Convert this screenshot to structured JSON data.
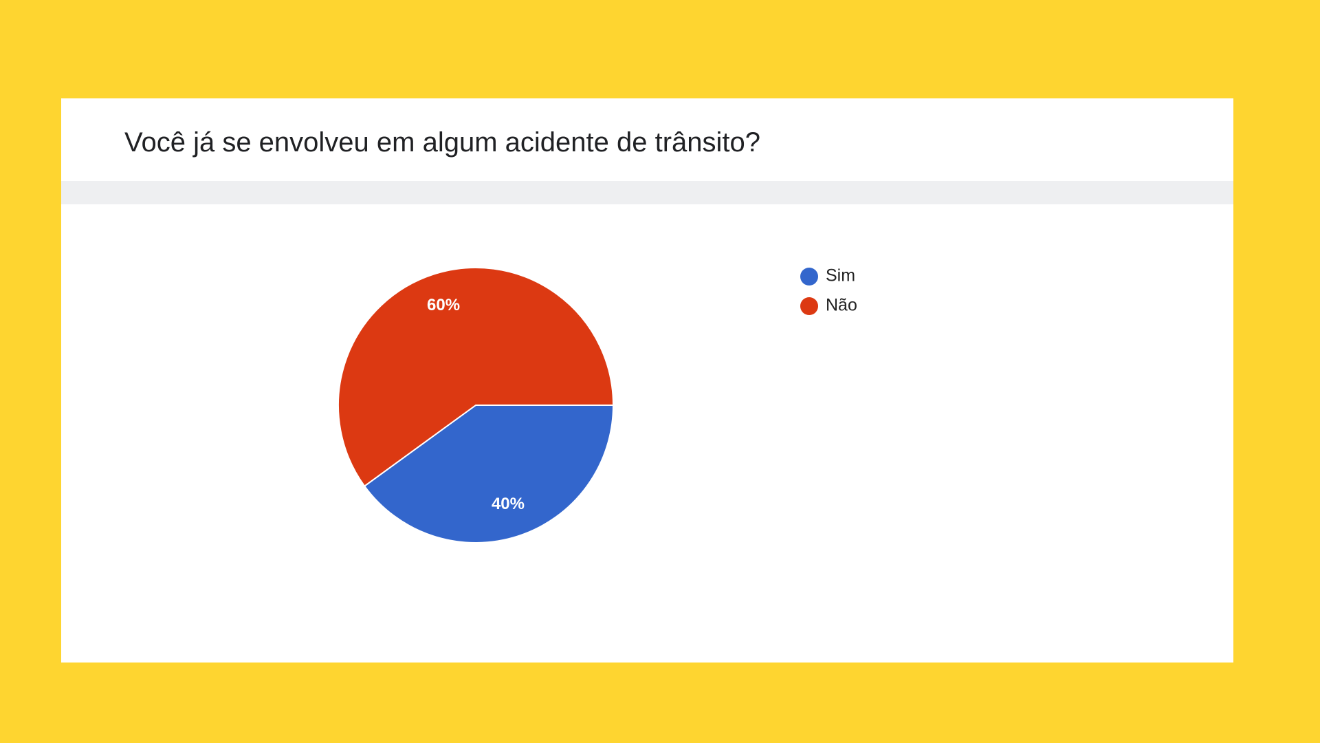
{
  "chart_data": {
    "type": "pie",
    "title": "Você já se envolveu em algum acidente de trânsito?",
    "categories": [
      "Sim",
      "Não"
    ],
    "values": [
      40,
      60
    ],
    "value_labels": [
      "40%",
      "60%"
    ],
    "colors": [
      "#3366cc",
      "#dc3912"
    ]
  }
}
